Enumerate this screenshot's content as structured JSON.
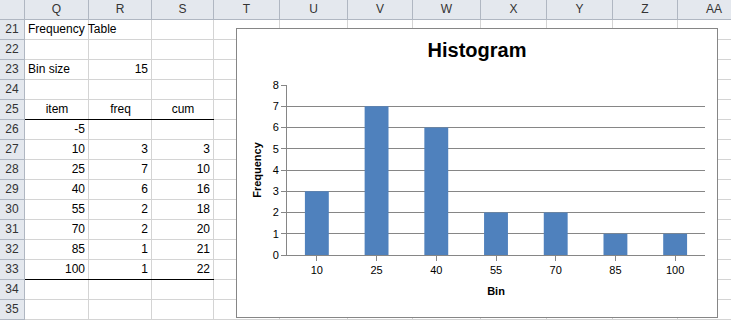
{
  "sheet": {
    "columns": [
      "Q",
      "R",
      "S",
      "T",
      "U",
      "V",
      "W",
      "X",
      "Y",
      "Z",
      "AA"
    ],
    "rows": [
      21,
      22,
      23,
      24,
      25,
      26,
      27,
      28,
      29,
      30,
      31,
      32,
      33,
      34,
      35
    ],
    "title": "Frequency Table",
    "bin_size_label": "Bin size",
    "bin_size": 15,
    "table": {
      "header": [
        "item",
        "freq",
        "cum"
      ],
      "rows": [
        [
          -5,
          null,
          null
        ],
        [
          10,
          3,
          3
        ],
        [
          25,
          7,
          10
        ],
        [
          40,
          6,
          16
        ],
        [
          55,
          2,
          18
        ],
        [
          70,
          2,
          20
        ],
        [
          85,
          1,
          21
        ],
        [
          100,
          1,
          22
        ]
      ]
    }
  },
  "chart_data": {
    "type": "bar",
    "title": "Histogram",
    "categories": [
      "10",
      "25",
      "40",
      "55",
      "70",
      "85",
      "100"
    ],
    "values": [
      3,
      7,
      6,
      2,
      2,
      1,
      1
    ],
    "color": "#4f81bd",
    "x_label": "Bin",
    "y_label": "Frequency",
    "ylim": [
      0,
      8
    ],
    "yticks": [
      0,
      1,
      2,
      3,
      4,
      5,
      6,
      7,
      8
    ],
    "grid": true
  }
}
